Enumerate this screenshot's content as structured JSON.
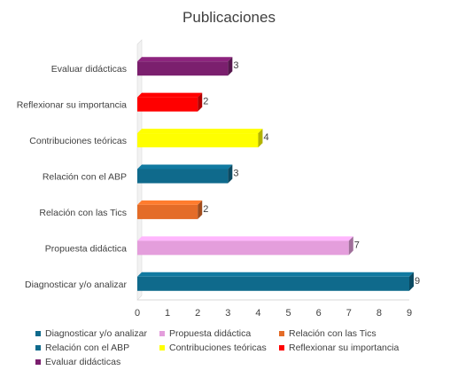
{
  "title": "Publicaciones",
  "chart_data": {
    "type": "bar",
    "orientation": "horizontal",
    "style": "3d",
    "title": "Publicaciones",
    "xlabel": "",
    "ylabel": "",
    "xlim": [
      0,
      9
    ],
    "x_ticks": [
      "0",
      "1",
      "2",
      "3",
      "4",
      "5",
      "6",
      "7",
      "8",
      "9"
    ],
    "grid": false,
    "legend_position": "bottom",
    "categories": [
      "Evaluar didácticas",
      "Reflexionar su importancia",
      "Contribuciones teóricas",
      "Relación con el ABP",
      "Relación con las Tics",
      "Propuesta didáctica",
      "Diagnosticar y/o analizar"
    ],
    "values": [
      3,
      2,
      4,
      3,
      2,
      7,
      9
    ],
    "data_labels": [
      "3",
      "2",
      "4",
      "3",
      "2",
      "7",
      "9"
    ],
    "colors": [
      "#7B1F6E",
      "#FF0000",
      "#FFFF00",
      "#0F6A8C",
      "#E46C28",
      "#E49EDC",
      "#0F6A8C"
    ]
  },
  "legend": [
    {
      "label": "Diagnosticar y/o analizar",
      "color": "#0F6A8C"
    },
    {
      "label": "Propuesta didáctica",
      "color": "#E49EDC"
    },
    {
      "label": "Relación con las Tics",
      "color": "#E46C28"
    },
    {
      "label": "Relación con el ABP",
      "color": "#0F6A8C"
    },
    {
      "label": "Contribuciones teóricas",
      "color": "#FFFF00"
    },
    {
      "label": "Reflexionar su importancia",
      "color": "#FF0000"
    },
    {
      "label": "Evaluar didácticas",
      "color": "#7B1F6E"
    }
  ]
}
